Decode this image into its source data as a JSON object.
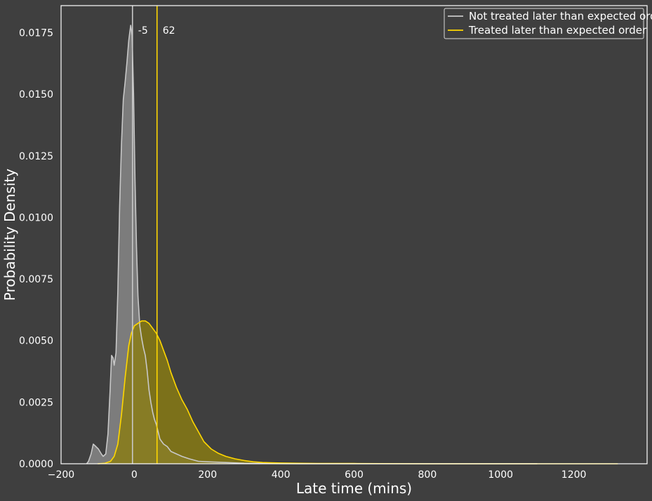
{
  "chart_data": {
    "type": "area",
    "title": "",
    "xlabel": "Late time (mins)",
    "ylabel": "Probability Density",
    "xlim": [
      -200,
      1400
    ],
    "ylim": [
      0,
      0.0186
    ],
    "grid": false,
    "legend_position": "top-right",
    "x_ticks": [
      -200,
      0,
      200,
      400,
      600,
      800,
      1000,
      1200
    ],
    "x_tick_labels": [
      "−200",
      "0",
      "200",
      "400",
      "600",
      "800",
      "1000",
      "1200"
    ],
    "y_ticks": [
      0,
      0.0025,
      0.005,
      0.0075,
      0.01,
      0.0125,
      0.015,
      0.0175
    ],
    "y_tick_labels": [
      "0.0000",
      "0.0025",
      "0.0050",
      "0.0075",
      "0.0100",
      "0.0125",
      "0.0150",
      "0.0175"
    ],
    "series": [
      {
        "name": "Not treated later than expected order",
        "color": "#c8c8c8",
        "fill": "#8a8a8a",
        "median": -5,
        "median_label": "-5",
        "points": [
          [
            -130,
            0
          ],
          [
            -125,
            0.0001
          ],
          [
            -118,
            0.0004
          ],
          [
            -112,
            0.0008
          ],
          [
            -105,
            0.0007
          ],
          [
            -98,
            0.0006
          ],
          [
            -90,
            0.0004
          ],
          [
            -85,
            0.0003
          ],
          [
            -78,
            0.0004
          ],
          [
            -72,
            0.0012
          ],
          [
            -66,
            0.003
          ],
          [
            -62,
            0.0044
          ],
          [
            -58,
            0.0043
          ],
          [
            -55,
            0.004
          ],
          [
            -50,
            0.0045
          ],
          [
            -45,
            0.007
          ],
          [
            -40,
            0.0105
          ],
          [
            -35,
            0.013
          ],
          [
            -30,
            0.0148
          ],
          [
            -25,
            0.0155
          ],
          [
            -20,
            0.0163
          ],
          [
            -15,
            0.0172
          ],
          [
            -10,
            0.0178
          ],
          [
            -6,
            0.0174
          ],
          [
            -2,
            0.015
          ],
          [
            2,
            0.0115
          ],
          [
            6,
            0.0088
          ],
          [
            10,
            0.0068
          ],
          [
            15,
            0.0056
          ],
          [
            20,
            0.0051
          ],
          [
            25,
            0.0047
          ],
          [
            30,
            0.0044
          ],
          [
            35,
            0.0038
          ],
          [
            40,
            0.003
          ],
          [
            45,
            0.0025
          ],
          [
            50,
            0.0021
          ],
          [
            55,
            0.0018
          ],
          [
            60,
            0.0016
          ],
          [
            65,
            0.0013
          ],
          [
            70,
            0.001
          ],
          [
            75,
            0.0009
          ],
          [
            80,
            0.0008
          ],
          [
            90,
            0.0007
          ],
          [
            100,
            0.0005
          ],
          [
            115,
            0.0004
          ],
          [
            130,
            0.0003
          ],
          [
            150,
            0.0002
          ],
          [
            175,
            0.0001
          ],
          [
            200,
            8e-05
          ],
          [
            250,
            5e-05
          ],
          [
            300,
            2e-05
          ],
          [
            350,
            1e-05
          ],
          [
            450,
            0
          ],
          [
            600,
            0
          ],
          [
            800,
            0
          ],
          [
            1000,
            0
          ],
          [
            1100,
            0
          ]
        ]
      },
      {
        "name": "Treated later than expected order",
        "color": "#ffd700",
        "fill": "#8a7d12",
        "median": 62,
        "median_label": "62",
        "points": [
          [
            -100,
            0
          ],
          [
            -80,
            2e-05
          ],
          [
            -65,
            0.0001
          ],
          [
            -55,
            0.0003
          ],
          [
            -45,
            0.0008
          ],
          [
            -35,
            0.002
          ],
          [
            -25,
            0.0035
          ],
          [
            -15,
            0.0048
          ],
          [
            -8,
            0.0053
          ],
          [
            0,
            0.0056
          ],
          [
            10,
            0.0057
          ],
          [
            20,
            0.0058
          ],
          [
            30,
            0.0058
          ],
          [
            40,
            0.0057
          ],
          [
            50,
            0.0055
          ],
          [
            60,
            0.0053
          ],
          [
            70,
            0.005
          ],
          [
            80,
            0.0046
          ],
          [
            90,
            0.0042
          ],
          [
            100,
            0.0037
          ],
          [
            115,
            0.0031
          ],
          [
            130,
            0.0026
          ],
          [
            145,
            0.0022
          ],
          [
            160,
            0.0017
          ],
          [
            175,
            0.0013
          ],
          [
            190,
            0.0009
          ],
          [
            210,
            0.0006
          ],
          [
            230,
            0.00042
          ],
          [
            250,
            0.0003
          ],
          [
            275,
            0.0002
          ],
          [
            300,
            0.00013
          ],
          [
            325,
            8e-05
          ],
          [
            350,
            5e-05
          ],
          [
            400,
            3e-05
          ],
          [
            450,
            2e-05
          ],
          [
            500,
            1e-05
          ],
          [
            600,
            1e-05
          ],
          [
            800,
            0
          ],
          [
            1000,
            0
          ],
          [
            1200,
            0
          ],
          [
            1320,
            0
          ]
        ]
      }
    ]
  }
}
